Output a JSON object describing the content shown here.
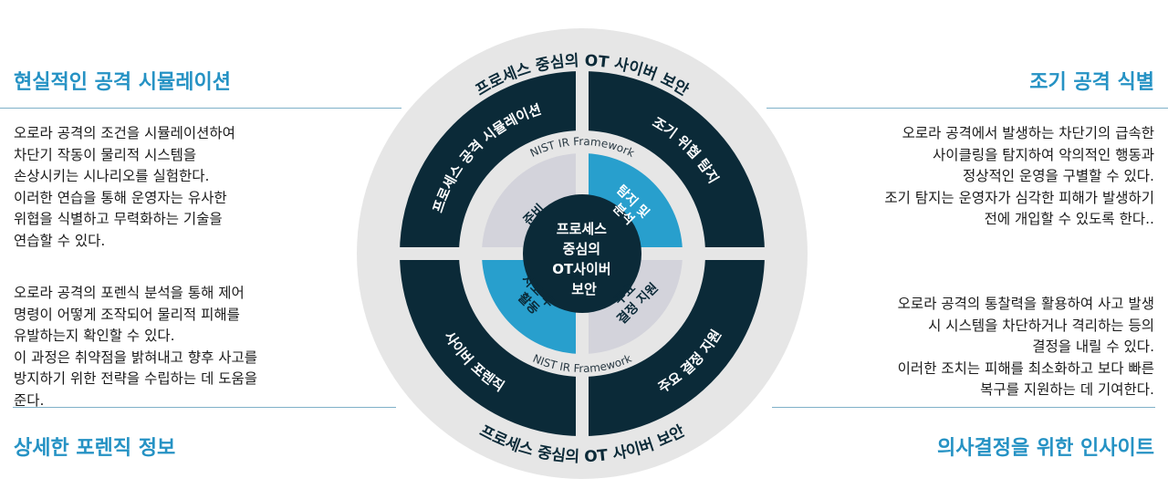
{
  "colors": {
    "heading": "#2592c4",
    "dark": "#0b2a38",
    "ring": "#e6e6e6",
    "blue": "#289fcd",
    "gray": "#d3d3db"
  },
  "top_left": {
    "heading": "현실적인 공격 시뮬레이션",
    "lines": [
      "오로라 공격의 조건을 시뮬레이션하여",
      "차단기 작동이 물리적 시스템을",
      "손상시키는 시나리오를 실험한다.",
      "이러한 연습을 통해 운영자는 유사한",
      "위협을 식별하고 무력화하는 기술을",
      "연습할 수 있다."
    ]
  },
  "bottom_left": {
    "heading": "상세한 포렌직 정보",
    "lines": [
      "오로라 공격의 포렌식 분석을 통해 제어",
      "명령이 어떻게 조작되어 물리적 피해를",
      "유발하는지 확인할 수 있다.",
      "이 과정은 취약점을 밝혀내고 향후 사고를",
      "방지하기 위한 전략을 수립하는 데 도움을",
      "준다."
    ]
  },
  "top_right": {
    "heading": "조기 공격 식별",
    "lines": [
      "오로라 공격에서 발생하는 차단기의 급속한",
      "사이클링을 탐지하여 악의적인 행동과",
      "정상적인 운영을 구별할 수 있다.",
      "조기 탐지는 운영자가 심각한 피해가 발생하기",
      "전에 개입할 수 있도록 한다.."
    ]
  },
  "bottom_right": {
    "heading": "의사결정을 위한 인사이트",
    "lines": [
      "오로라 공격의 통찰력을 활용하여 사고 발생",
      "시 시스템을 차단하거나 격리하는 등의",
      "결정을 내릴 수 있다.",
      "이러한 조치는 피해를 최소화하고 보다 빠른",
      "복구를 지원하는 데 기여한다."
    ]
  },
  "diagram": {
    "outer_top": "프로세스 중심의 OT 사이버 보안",
    "outer_bottom": "프로세스 중심의 OT 사이버 보안",
    "ring": {
      "top_left": "프로세스 공격 시뮬레이션",
      "top_right": "조기 위협 탐지",
      "bottom_left": "사이버 포렌직",
      "bottom_right": "주요 결정 지원"
    },
    "nist_top": "NIST IR Framework",
    "nist_bottom": "NIST IR Framework",
    "quadrants": {
      "preparation": [
        "준비"
      ],
      "detection": [
        "탐지 및",
        "분석"
      ],
      "post_incident": [
        "사고 후",
        "활동"
      ],
      "decision": [
        "주요",
        "결정 지원"
      ]
    },
    "center": [
      "프로세스",
      "중심의",
      "OT사이버",
      "보안"
    ]
  }
}
